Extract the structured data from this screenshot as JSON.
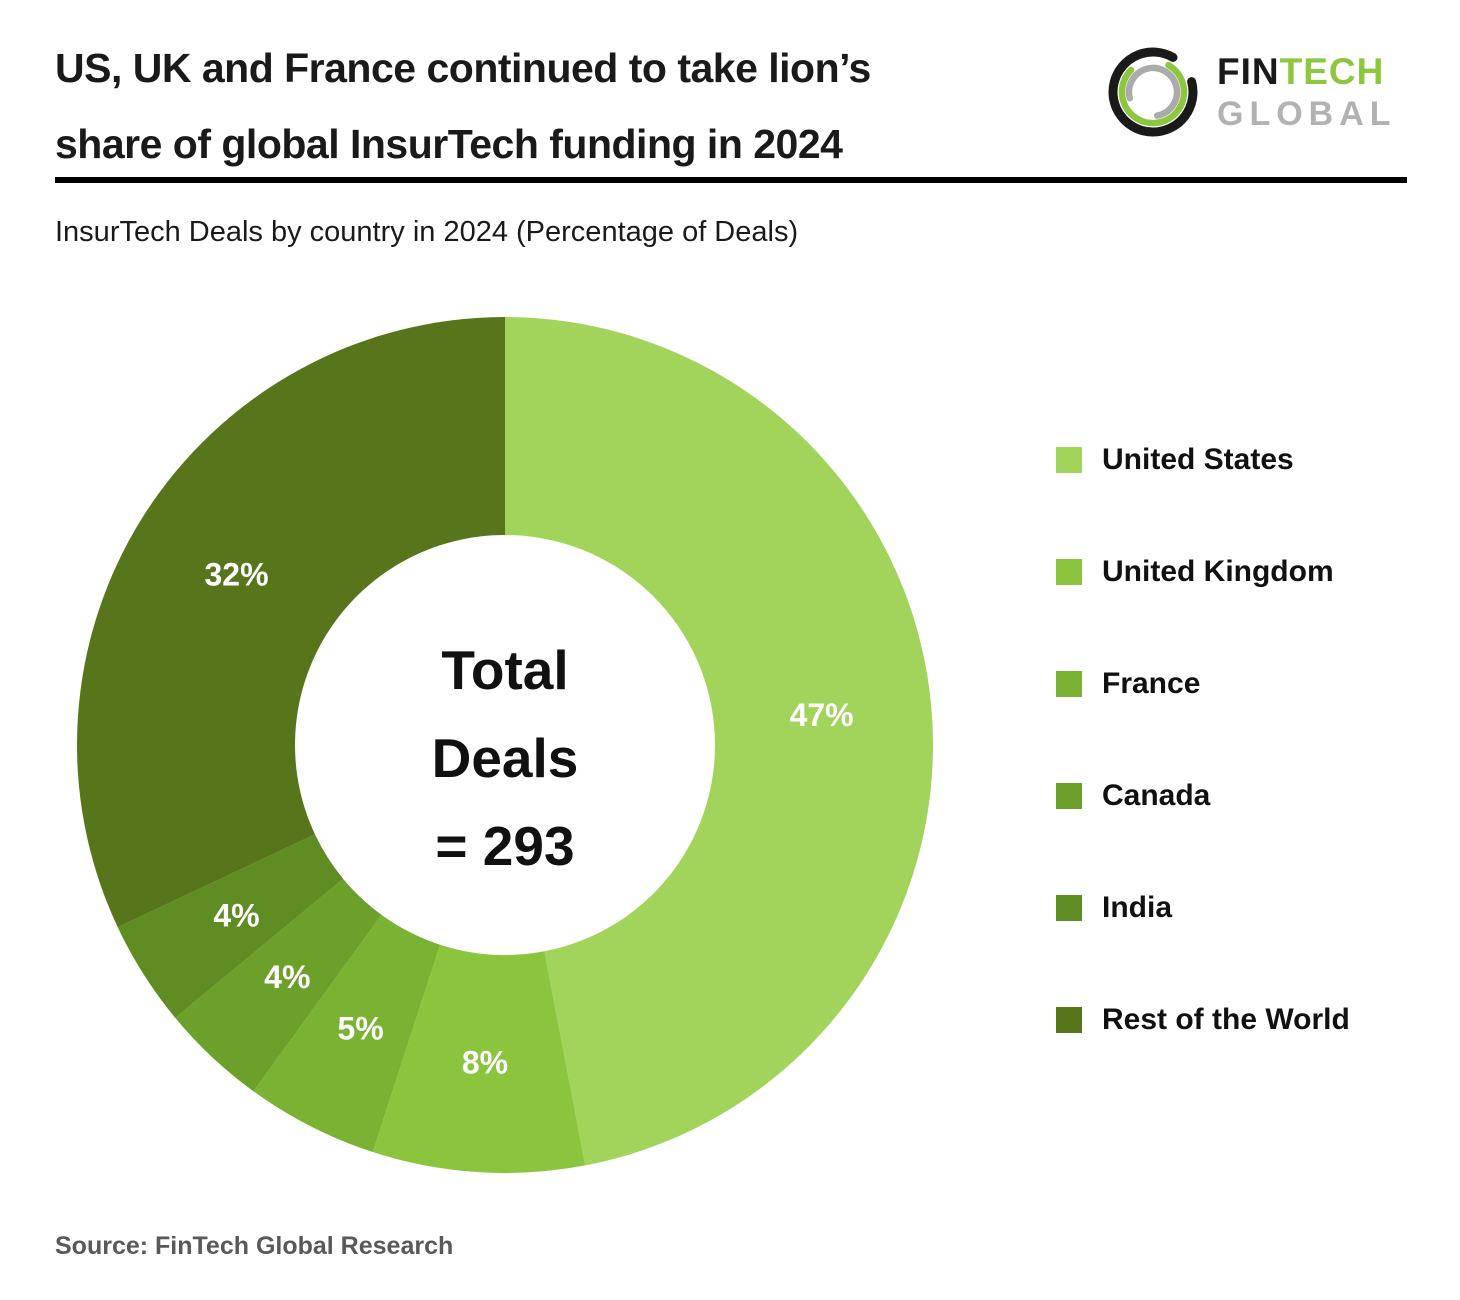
{
  "header": {
    "title": "US, UK and France continued to take lion’s share of global InsurTech funding in 2024",
    "title_lines": [
      "US, UK and France continued to take lion’s",
      "share of global InsurTech funding in 2024"
    ],
    "logo": {
      "fin": "FIN",
      "tech": "TECH",
      "global": "GLOBAL"
    }
  },
  "subtitle": "InsurTech Deals by country in 2024 (Percentage of Deals)",
  "chart_data": {
    "type": "pie",
    "subtype": "donut",
    "title": "InsurTech Deals by country in 2024 (Percentage of Deals)",
    "categories": [
      "United States",
      "United Kingdom",
      "France",
      "Canada",
      "India",
      "Rest of the World"
    ],
    "values": [
      47,
      8,
      5,
      4,
      4,
      32
    ],
    "unit": "%",
    "labels": [
      "47%",
      "8%",
      "5%",
      "4%",
      "4%",
      "32%"
    ],
    "colors": [
      "#a2d45c",
      "#8bc53e",
      "#7ab334",
      "#6ca02b",
      "#5f8c23",
      "#57761b"
    ],
    "center_label": "Total Deals = 293",
    "center_lines": [
      "Total",
      "Deals",
      "= 293"
    ],
    "total_deals": 293,
    "start_angle_deg": 0,
    "direction": "clockwise",
    "legend_position": "right",
    "label_color": "#ffffff"
  },
  "footer": {
    "source": "Source: FinTech Global Research"
  },
  "colors": {
    "logo_black": "#1a1a1a",
    "logo_green": "#8dc63f",
    "logo_gray": "#b2b2b2",
    "title_text": "#1a1a1a",
    "source_text": "#58595b",
    "divider": "#000000"
  }
}
